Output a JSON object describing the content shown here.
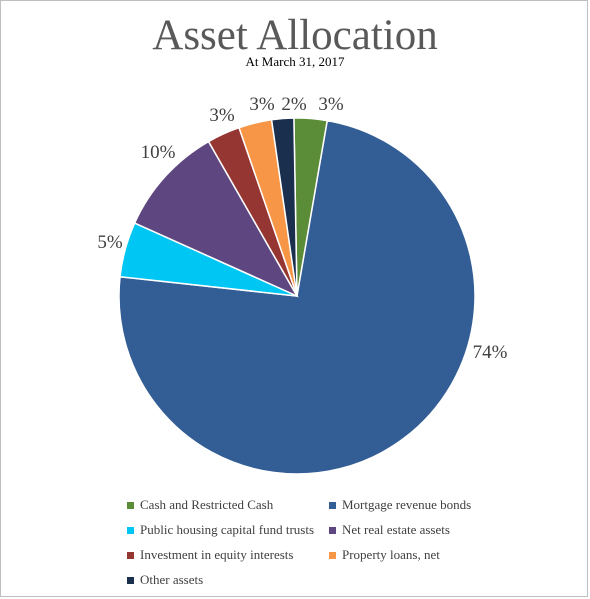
{
  "chart_data": {
    "type": "pie",
    "title": "Asset Allocation",
    "subtitle": "At March 31, 2017",
    "slices": [
      {
        "name": "Cash and Restricted Cash",
        "value": 3,
        "label": "3%",
        "color": "#5b8c37"
      },
      {
        "name": "Mortgage revenue bonds",
        "value": 74,
        "label": "74%",
        "color": "#335d95"
      },
      {
        "name": "Public housing capital fund trusts",
        "value": 5,
        "label": "5%",
        "color": "#00c6f3"
      },
      {
        "name": "Net real estate assets",
        "value": 10,
        "label": "10%",
        "color": "#5e4780"
      },
      {
        "name": "Investment in equity interests",
        "value": 3,
        "label": "3%",
        "color": "#963633"
      },
      {
        "name": "Property loans, net",
        "value": 3,
        "label": "3%",
        "color": "#f79646"
      },
      {
        "name": "Other assets",
        "value": 2,
        "label": "2%",
        "color": "#1a2e4d"
      }
    ],
    "legend_position": "bottom"
  }
}
